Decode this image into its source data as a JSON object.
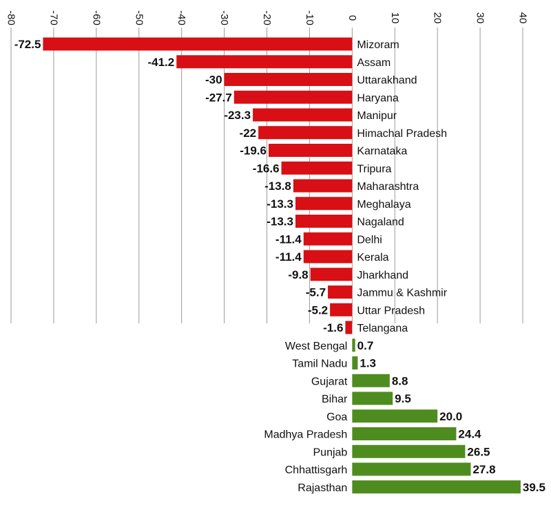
{
  "chart_data": {
    "type": "bar",
    "orientation": "horizontal",
    "title": "",
    "xlabel": "",
    "ylabel": "",
    "xlim": [
      -80,
      40
    ],
    "x_ticks": [
      -80,
      -70,
      -60,
      -50,
      -40,
      -30,
      -20,
      -10,
      0,
      10,
      20,
      30,
      40
    ],
    "grid": true,
    "colors": {
      "negative": "#d80f14",
      "positive": "#4f8c1f"
    },
    "categories": [
      "Mizoram",
      "Assam",
      "Uttarakhand",
      "Haryana",
      "Manipur",
      "Himachal Pradesh",
      "Karnataka",
      "Tripura",
      "Maharashtra",
      "Meghalaya",
      "Nagaland",
      "Delhi",
      "Kerala",
      "Jharkhand",
      "Jammu & Kashmir",
      "Uttar Pradesh",
      "Telangana",
      "West Bengal",
      "Tamil Nadu",
      "Gujarat",
      "Bihar",
      "Goa",
      "Madhya Pradesh",
      "Punjab",
      "Chhattisgarh",
      "Rajasthan"
    ],
    "values": [
      -72.5,
      -41.2,
      -30,
      -27.7,
      -23.3,
      -22,
      -19.6,
      -16.6,
      -13.8,
      -13.3,
      -13.3,
      -11.4,
      -11.4,
      -9.8,
      -5.7,
      -5.2,
      -1.6,
      0.7,
      1.3,
      8.8,
      9.5,
      20.0,
      24.4,
      26.5,
      27.8,
      39.5
    ],
    "value_labels": [
      "-72.5",
      "-41.2",
      "-30",
      "-27.7",
      "-23.3",
      "-22",
      "-19.6",
      "-16.6",
      "-13.8",
      "-13.3",
      "-13.3",
      "-11.4",
      "-11.4",
      "-9.8",
      "-5.7",
      "-5.2",
      "-1.6",
      "0.7",
      "1.3",
      "8.8",
      "9.5",
      "20.0",
      "24.4",
      "26.5",
      "27.8",
      "39.5"
    ]
  }
}
